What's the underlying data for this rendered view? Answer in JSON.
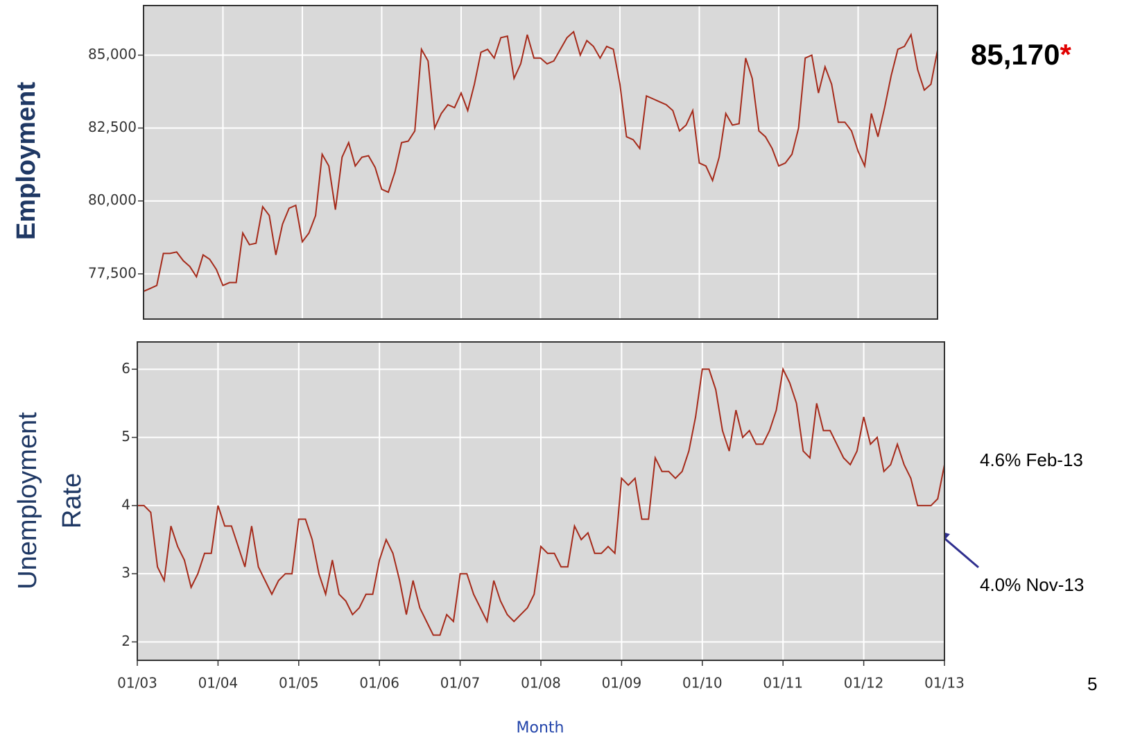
{
  "chart_data": [
    {
      "type": "line",
      "ylabel": "Employment",
      "annotation": "85,170",
      "annotation_marker": "*",
      "color": "#a52a1a",
      "grid": true,
      "ylim": [
        75950,
        86700
      ],
      "yticks": [
        {
          "value": 77500,
          "label": "77,500"
        },
        {
          "value": 80000,
          "label": "80,000"
        },
        {
          "value": 82500,
          "label": "82,500"
        },
        {
          "value": 85000,
          "label": "85,000"
        }
      ],
      "values": [
        76900,
        77000,
        77100,
        78200,
        78200,
        78250,
        77950,
        77750,
        77400,
        78150,
        78000,
        77650,
        77100,
        77200,
        77200,
        78900,
        78500,
        78550,
        79800,
        79500,
        78150,
        79200,
        79750,
        79850,
        78600,
        78900,
        79500,
        81600,
        81200,
        79700,
        81500,
        82000,
        81200,
        81500,
        81550,
        81150,
        80400,
        80300,
        81000,
        82000,
        82050,
        82400,
        85200,
        84800,
        82500,
        83000,
        83300,
        83200,
        83700,
        83100,
        84000,
        85100,
        85200,
        84900,
        85600,
        85650,
        84200,
        84700,
        85700,
        84900,
        84900,
        84700,
        84800,
        85200,
        85600,
        85800,
        85000,
        85500,
        85300,
        84900,
        85300,
        85200,
        84000,
        82200,
        82100,
        81800,
        83600,
        83500,
        83400,
        83300,
        83100,
        82400,
        82600,
        83100,
        81300,
        81200,
        80700,
        81500,
        83000,
        82600,
        82650,
        84900,
        84200,
        82400,
        82200,
        81800,
        81200,
        81300,
        81600,
        82500,
        84900,
        85000,
        83700,
        84600,
        84000,
        82700,
        82700,
        82400,
        81700,
        81200,
        83000,
        82200,
        83200,
        84300,
        85200,
        85300,
        85700,
        84500,
        83800,
        84000,
        85170
      ]
    },
    {
      "type": "line",
      "ylabel": [
        "Unemployment",
        "Rate"
      ],
      "xlabel": "Month",
      "annotations": [
        "4.6% Feb-13",
        "4.0% Nov-13"
      ],
      "color": "#a52a1a",
      "grid": true,
      "ylim": [
        1.73,
        6.4
      ],
      "yticks": [
        2,
        3,
        4,
        5,
        6
      ],
      "categories": [
        "01/03",
        null,
        null,
        null,
        null,
        null,
        null,
        null,
        null,
        null,
        null,
        null,
        "01/04",
        null,
        null,
        null,
        null,
        null,
        null,
        null,
        null,
        null,
        null,
        null,
        "01/05",
        null,
        null,
        null,
        null,
        null,
        null,
        null,
        null,
        null,
        null,
        null,
        "01/06",
        null,
        null,
        null,
        null,
        null,
        null,
        null,
        null,
        null,
        null,
        null,
        "01/07",
        null,
        null,
        null,
        null,
        null,
        null,
        null,
        null,
        null,
        null,
        null,
        "01/08",
        null,
        null,
        null,
        null,
        null,
        null,
        null,
        null,
        null,
        null,
        null,
        "01/09",
        null,
        null,
        null,
        null,
        null,
        null,
        null,
        null,
        null,
        null,
        null,
        "01/10",
        null,
        null,
        null,
        null,
        null,
        null,
        null,
        null,
        null,
        null,
        null,
        "01/11",
        null,
        null,
        null,
        null,
        null,
        null,
        null,
        null,
        null,
        null,
        null,
        "01/12",
        null,
        null,
        null,
        null,
        null,
        null,
        null,
        null,
        null,
        null,
        null,
        "01/13"
      ],
      "values": [
        4.0,
        4.0,
        3.9,
        3.1,
        2.9,
        3.7,
        3.4,
        3.2,
        2.8,
        3.0,
        3.3,
        3.3,
        4.0,
        3.7,
        3.7,
        3.4,
        3.1,
        3.7,
        3.1,
        2.9,
        2.7,
        2.9,
        3.0,
        3.0,
        3.8,
        3.8,
        3.5,
        3.0,
        2.7,
        3.2,
        2.7,
        2.6,
        2.4,
        2.5,
        2.7,
        2.7,
        3.2,
        3.5,
        3.3,
        2.9,
        2.4,
        2.9,
        2.5,
        2.3,
        2.1,
        2.1,
        2.4,
        2.3,
        3.0,
        3.0,
        2.7,
        2.5,
        2.3,
        2.9,
        2.6,
        2.4,
        2.3,
        2.4,
        2.5,
        2.7,
        3.4,
        3.3,
        3.3,
        3.1,
        3.1,
        3.7,
        3.5,
        3.6,
        3.3,
        3.3,
        3.4,
        3.3,
        4.4,
        4.3,
        4.4,
        3.8,
        3.8,
        4.7,
        4.5,
        4.5,
        4.4,
        4.5,
        4.8,
        5.3,
        6.0,
        6.0,
        5.7,
        5.1,
        4.8,
        5.4,
        5.0,
        5.1,
        4.9,
        4.9,
        5.1,
        5.4,
        6.0,
        5.8,
        5.5,
        4.8,
        4.7,
        5.5,
        5.1,
        5.1,
        4.9,
        4.7,
        4.6,
        4.8,
        5.3,
        4.9,
        5.0,
        4.5,
        4.6,
        4.9,
        4.6,
        4.4,
        4.0,
        4.0,
        4.0,
        4.1,
        4.6
      ]
    }
  ],
  "page_number": "5"
}
